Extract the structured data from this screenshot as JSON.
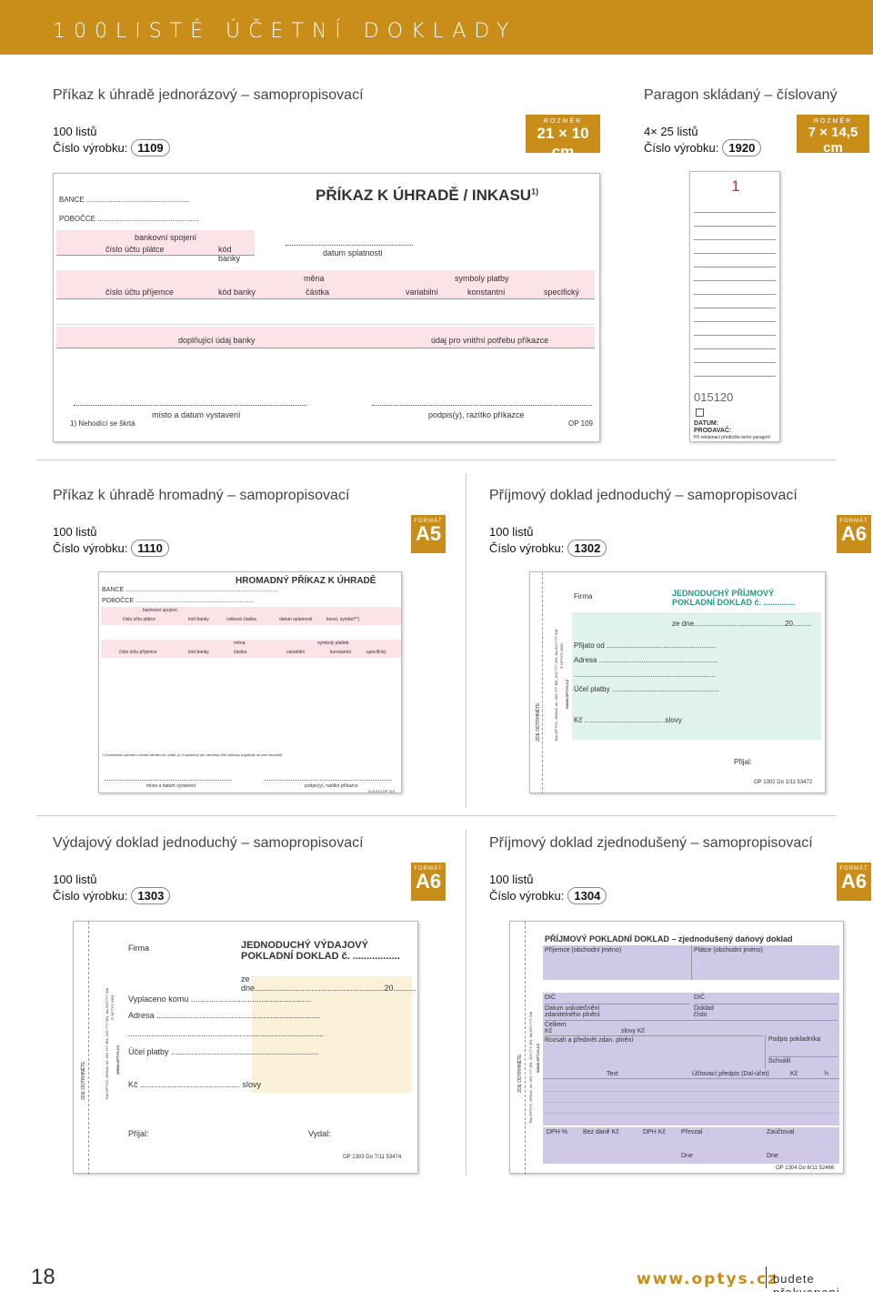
{
  "header": {
    "title": "100LISTÉ ÚČETNÍ DOKLADY"
  },
  "labels": {
    "listu_suffix": "listů",
    "cislo_vyrobku": "Číslo výrobku:",
    "rozmer": "ROZMĚR",
    "format": "FORMÁT"
  },
  "products": {
    "p1109": {
      "title": "Příkaz k úhradě jednorázový – samopropisovací",
      "sheets": "100 listů",
      "code": "1109",
      "size": "21 × 10 cm"
    },
    "p1920": {
      "title": "Paragon skládaný – číslovaný",
      "sheets": "4× 25 listů",
      "code": "1920",
      "size": "7 × 14,5 cm"
    },
    "p1110": {
      "title": "Příkaz k úhradě hromadný – samopropisovací",
      "sheets": "100 listů",
      "code": "1110",
      "format": "A5"
    },
    "p1302": {
      "title": "Příjmový doklad jednoduchý – samopropisovací",
      "sheets": "100 listů",
      "code": "1302",
      "format": "A6"
    },
    "p1303": {
      "title": "Výdajový doklad jednoduchý – samopropisovací",
      "sheets": "100 listů",
      "code": "1303",
      "format": "A6"
    },
    "p1304": {
      "title": "Příjmový doklad zjednodušený – samopropisovací",
      "sheets": "100 listů",
      "code": "1304",
      "format": "A6"
    }
  },
  "form1109": {
    "bance": "BANCE ...................................................",
    "pobocce": "POBOČCE ..................................................",
    "title": "PŘÍKAZ K ÚHRADĚ / INKASU",
    "title_sup": "1)",
    "bankovni_spojeni": "bankovní spojení",
    "cislo_uctu_platce": "číslo účtu plátce",
    "kod_banky": "kód banky",
    "datum_splatnosti": "datum splatnosti",
    "mena": "měna",
    "symboly_platby": "symboly platby",
    "cislo_uctu_prijemce": "číslo účtu příjemce",
    "kod_banky2": "kód banky",
    "castka": "částka",
    "variabilni": "variabilní",
    "konstantni": "konstantní",
    "specificky": "specifický",
    "doplnujici": "doplňující údaj banky",
    "udaj_pro": "údaj pro vnitřní potřebu příkazce",
    "misto_datum": "místo a datum vystavení",
    "podpis": "podpis(y), razítko příkazce",
    "footnote": "1) Nehodící se škrtá",
    "code": "OP 109"
  },
  "form1920": {
    "number": "1",
    "serial": "015120",
    "datum": "DATUM:",
    "prodavac": "PRODAVAČ:",
    "note": "Při reklamaci předložte tento paragon!"
  },
  "form1110": {
    "bance": "BANCE ......................................................................................",
    "pobocce": "POBOČCE ...................................................................",
    "title": "HROMADNÝ PŘÍKAZ K ÚHRADĚ",
    "bankovni_spojeni": "bankovní spojení",
    "row1": [
      "číslo účtu plátce",
      "kód banky",
      "celková částka",
      "datum splatnosti",
      "konst. symbol**)"
    ],
    "mena": "měna",
    "symboly": "symboly platieb",
    "row2": [
      "číslo účtu příjemce",
      "kód banky",
      "částka",
      "variabilní",
      "konstantní",
      "specifický"
    ],
    "footnote": "*) Konstantní symbol v tomto záhlaví se uvádí, je-li společný pro všechny dílčí příkazy (vyplňuje se pak neuvádí)",
    "misto": "místo a datum vystavení",
    "podpis": "podpis(y), razítko příkazce",
    "code": "O.A.013  OP 110"
  },
  "form1302": {
    "firma": "Firma",
    "title1": "JEDNODUCHÝ PŘÍJMOVÝ",
    "title2": "POKLADNÍ DOKLAD č. ..............",
    "ze_dne": "ze dne.............................................20.........",
    "prijato_od": "Přijato od ......................................................",
    "adresa": "Adresa ...........................................................",
    "dots": "......................................................................",
    "ucel": "Účel platby .....................................................",
    "kc": "Kč ........................................slovy",
    "prijal": "Přijal:",
    "code": "OP 1302   Do 1/11   53472",
    "side1": "ZDE ODTRHNĚTE",
    "side2": "Tisk OPTYS, OPAVA, tel. 553 777 381, 553 777 353, fax 553 777 318,",
    "side3": "© OPTYS 2009",
    "side4": "WWW.OPTYS.CZ"
  },
  "form1303": {
    "firma": "Firma",
    "title1": "JEDNODUCHÝ VÝDAJOVÝ",
    "title2": "POKLADNÍ DOKLAD č. .................",
    "ze_dne": "ze dne.........................................................20..........",
    "vyplaceno": "Vyplaceno komu .....................................................",
    "adresa": "Adresa ........................................................................",
    "dots": "......................................................................................",
    "ucel": "Účel platby .................................................................",
    "kc": "Kč ............................................ slovy",
    "prijal": "Přijal:",
    "vydal": "Vydal:",
    "code": "OP 1303   Do 7/11   53474",
    "side1": "ZDE ODTRHNĚTE",
    "side2": "Tisk OPTYS, OPAVA, tel. 553 777 381, 553 777 353, fax 553 777 318",
    "side3": "© OPTYS 2009",
    "side4": "WWW.OPTYS.CZ"
  },
  "form1304": {
    "title": "PŘÍJMOVÝ POKLADNÍ DOKLAD – zjednodušený daňový doklad",
    "prijemce": "Příjemce (obchodní jméno)",
    "platce": "Plátce (obchodní jméno)",
    "dic1": "DIČ",
    "dic2": "DIČ",
    "datum_usk": "Datum uskutečnění",
    "zdanitelneho": "zdanitelného plnění",
    "doklad": "Doklad",
    "cislo": "číslo",
    "celkem": "Celkem",
    "kc": "Kč",
    "slovy_kc": "slovy Kč",
    "rozsah": "Rozsah a předmět zdan. plnění",
    "podpis_pokl": "Podpis pokladníka",
    "schvalil": "Schválil",
    "text": "Text",
    "ucetni": "Účtovací předpis (Dal-účet)",
    "kc2": "Kč",
    "h": "h",
    "dph_pct": "DPH %",
    "bez_dane": "Bez daně Kč",
    "dph_kc": "DPH Kč",
    "prevzal": "Převzal",
    "zauctoval": "Zaúčtoval",
    "dne1": "Dne",
    "dne2": "Dne",
    "code": "OP 1304   Do 6/11   52466",
    "side1": "ZDE ODTRHNĚTE",
    "side2": "Tisk OPTYS, OPAVA, tel. 553 777 381, 553 777 353, fax 553 777 318",
    "side3": "WWW.OPTYS.CZ"
  },
  "footer": {
    "page_number": "18",
    "url": "www.optys.cz",
    "tagline": "budete překvapeni"
  }
}
